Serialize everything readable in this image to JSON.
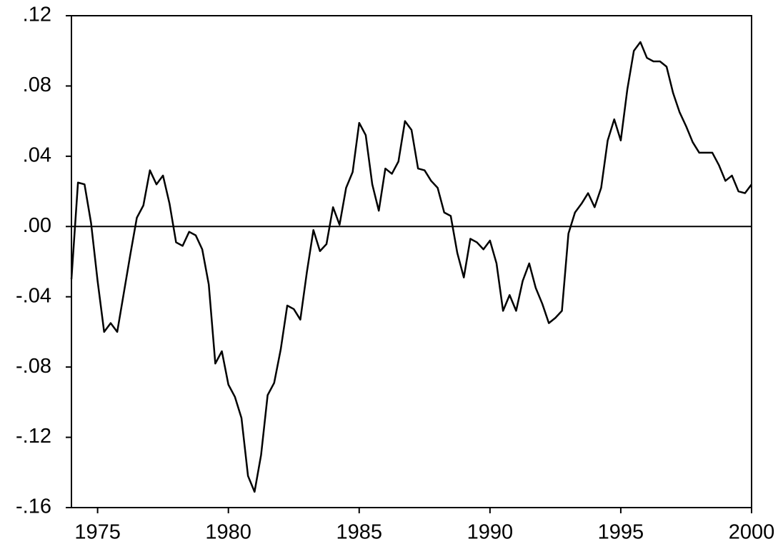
{
  "chart_data": {
    "type": "line",
    "x": [
      1974,
      1974.25,
      1974.5,
      1974.75,
      1975,
      1975.25,
      1975.5,
      1975.75,
      1976,
      1976.25,
      1976.5,
      1976.75,
      1977,
      1977.25,
      1977.5,
      1977.75,
      1978,
      1978.25,
      1978.5,
      1978.75,
      1979,
      1979.25,
      1979.5,
      1979.75,
      1980,
      1980.25,
      1980.5,
      1980.75,
      1981,
      1981.25,
      1981.5,
      1981.75,
      1982,
      1982.25,
      1982.5,
      1982.75,
      1983,
      1983.25,
      1983.5,
      1983.75,
      1984,
      1984.25,
      1984.5,
      1984.75,
      1985,
      1985.25,
      1985.5,
      1985.75,
      1986,
      1986.25,
      1986.5,
      1986.75,
      1987,
      1987.25,
      1987.5,
      1987.75,
      1988,
      1988.25,
      1988.5,
      1988.75,
      1989,
      1989.25,
      1989.5,
      1989.75,
      1990,
      1990.25,
      1990.5,
      1990.75,
      1991,
      1991.25,
      1991.5,
      1991.75,
      1992,
      1992.25,
      1992.5,
      1992.75,
      1993,
      1993.25,
      1993.5,
      1993.75,
      1994,
      1994.25,
      1994.5,
      1994.75,
      1995,
      1995.25,
      1995.5,
      1995.75,
      1996,
      1996.25,
      1996.5,
      1996.75,
      1997,
      1997.25,
      1997.5,
      1997.75,
      1998,
      1998.25,
      1998.5,
      1998.75,
      1999,
      1999.25,
      1999.5,
      1999.75,
      2000
    ],
    "series": [
      {
        "color": "#000000",
        "values": [
          -0.03,
          0.025,
          0.024,
          0.002,
          -0.031,
          -0.06,
          -0.055,
          -0.06,
          -0.038,
          -0.016,
          0.005,
          0.012,
          0.032,
          0.024,
          0.029,
          0.013,
          -0.009,
          -0.011,
          -0.003,
          -0.005,
          -0.013,
          -0.033,
          -0.078,
          -0.071,
          -0.09,
          -0.097,
          -0.109,
          -0.142,
          -0.151,
          -0.13,
          -0.096,
          -0.089,
          -0.07,
          -0.045,
          -0.047,
          -0.053,
          -0.026,
          -0.002,
          -0.014,
          -0.01,
          0.011,
          0.001,
          0.022,
          0.031,
          0.059,
          0.052,
          0.024,
          0.009,
          0.033,
          0.03,
          0.037,
          0.06,
          0.055,
          0.033,
          0.032,
          0.026,
          0.022,
          0.008,
          0.006,
          -0.015,
          -0.029,
          -0.007,
          -0.009,
          -0.013,
          -0.008,
          -0.021,
          -0.048,
          -0.039,
          -0.048,
          -0.031,
          -0.021,
          -0.035,
          -0.044,
          -0.055,
          -0.052,
          -0.048,
          -0.004,
          0.008,
          0.013,
          0.019,
          0.011,
          0.022,
          0.049,
          0.061,
          0.049,
          0.078,
          0.1,
          0.105,
          0.096,
          0.094,
          0.094,
          0.091,
          0.076,
          0.065,
          0.057,
          0.048,
          0.042,
          0.042,
          0.042,
          0.035,
          0.026,
          0.029,
          0.02,
          0.019,
          0.024
        ]
      }
    ],
    "xlim": [
      1974,
      2000
    ],
    "xticks": [
      1975,
      1980,
      1985,
      1990,
      1995,
      2000
    ],
    "ylim": [
      -0.16,
      0.12
    ],
    "yticks": [
      {
        "value": -0.16,
        "label": "-.16"
      },
      {
        "value": -0.12,
        "label": "-.12"
      },
      {
        "value": -0.08,
        "label": "-.08"
      },
      {
        "value": -0.04,
        "label": "-.04"
      },
      {
        "value": 0,
        "label": ".00"
      },
      {
        "value": 0.04,
        "label": ".04"
      },
      {
        "value": 0.08,
        "label": ".08"
      },
      {
        "value": 0.12,
        "label": ".12"
      }
    ],
    "zero_line": true
  }
}
